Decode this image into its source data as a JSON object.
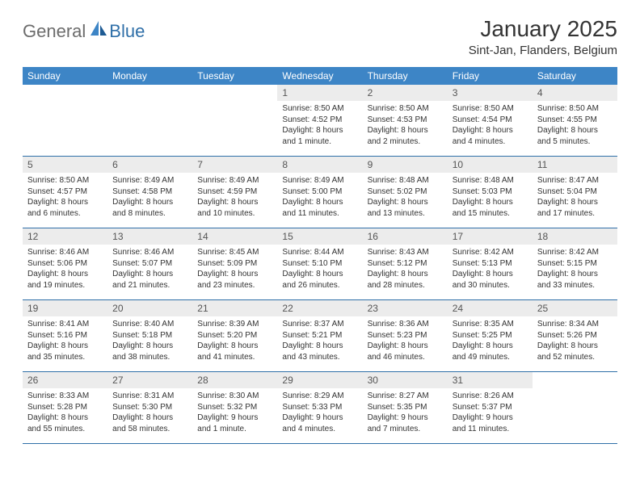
{
  "brand": {
    "part1": "General",
    "part2": "Blue"
  },
  "title": "January 2025",
  "location": "Sint-Jan, Flanders, Belgium",
  "colors": {
    "header_bg": "#3d85c6",
    "header_text": "#ffffff",
    "daynum_bg": "#ececec",
    "row_border": "#2f6fa8",
    "logo_gray": "#6c6c6c",
    "logo_blue": "#2f6fa8"
  },
  "day_headers": [
    "Sunday",
    "Monday",
    "Tuesday",
    "Wednesday",
    "Thursday",
    "Friday",
    "Saturday"
  ],
  "weeks": [
    [
      null,
      null,
      null,
      {
        "n": "1",
        "sr": "Sunrise: 8:50 AM",
        "ss": "Sunset: 4:52 PM",
        "dl": "Daylight: 8 hours and 1 minute."
      },
      {
        "n": "2",
        "sr": "Sunrise: 8:50 AM",
        "ss": "Sunset: 4:53 PM",
        "dl": "Daylight: 8 hours and 2 minutes."
      },
      {
        "n": "3",
        "sr": "Sunrise: 8:50 AM",
        "ss": "Sunset: 4:54 PM",
        "dl": "Daylight: 8 hours and 4 minutes."
      },
      {
        "n": "4",
        "sr": "Sunrise: 8:50 AM",
        "ss": "Sunset: 4:55 PM",
        "dl": "Daylight: 8 hours and 5 minutes."
      }
    ],
    [
      {
        "n": "5",
        "sr": "Sunrise: 8:50 AM",
        "ss": "Sunset: 4:57 PM",
        "dl": "Daylight: 8 hours and 6 minutes."
      },
      {
        "n": "6",
        "sr": "Sunrise: 8:49 AM",
        "ss": "Sunset: 4:58 PM",
        "dl": "Daylight: 8 hours and 8 minutes."
      },
      {
        "n": "7",
        "sr": "Sunrise: 8:49 AM",
        "ss": "Sunset: 4:59 PM",
        "dl": "Daylight: 8 hours and 10 minutes."
      },
      {
        "n": "8",
        "sr": "Sunrise: 8:49 AM",
        "ss": "Sunset: 5:00 PM",
        "dl": "Daylight: 8 hours and 11 minutes."
      },
      {
        "n": "9",
        "sr": "Sunrise: 8:48 AM",
        "ss": "Sunset: 5:02 PM",
        "dl": "Daylight: 8 hours and 13 minutes."
      },
      {
        "n": "10",
        "sr": "Sunrise: 8:48 AM",
        "ss": "Sunset: 5:03 PM",
        "dl": "Daylight: 8 hours and 15 minutes."
      },
      {
        "n": "11",
        "sr": "Sunrise: 8:47 AM",
        "ss": "Sunset: 5:04 PM",
        "dl": "Daylight: 8 hours and 17 minutes."
      }
    ],
    [
      {
        "n": "12",
        "sr": "Sunrise: 8:46 AM",
        "ss": "Sunset: 5:06 PM",
        "dl": "Daylight: 8 hours and 19 minutes."
      },
      {
        "n": "13",
        "sr": "Sunrise: 8:46 AM",
        "ss": "Sunset: 5:07 PM",
        "dl": "Daylight: 8 hours and 21 minutes."
      },
      {
        "n": "14",
        "sr": "Sunrise: 8:45 AM",
        "ss": "Sunset: 5:09 PM",
        "dl": "Daylight: 8 hours and 23 minutes."
      },
      {
        "n": "15",
        "sr": "Sunrise: 8:44 AM",
        "ss": "Sunset: 5:10 PM",
        "dl": "Daylight: 8 hours and 26 minutes."
      },
      {
        "n": "16",
        "sr": "Sunrise: 8:43 AM",
        "ss": "Sunset: 5:12 PM",
        "dl": "Daylight: 8 hours and 28 minutes."
      },
      {
        "n": "17",
        "sr": "Sunrise: 8:42 AM",
        "ss": "Sunset: 5:13 PM",
        "dl": "Daylight: 8 hours and 30 minutes."
      },
      {
        "n": "18",
        "sr": "Sunrise: 8:42 AM",
        "ss": "Sunset: 5:15 PM",
        "dl": "Daylight: 8 hours and 33 minutes."
      }
    ],
    [
      {
        "n": "19",
        "sr": "Sunrise: 8:41 AM",
        "ss": "Sunset: 5:16 PM",
        "dl": "Daylight: 8 hours and 35 minutes."
      },
      {
        "n": "20",
        "sr": "Sunrise: 8:40 AM",
        "ss": "Sunset: 5:18 PM",
        "dl": "Daylight: 8 hours and 38 minutes."
      },
      {
        "n": "21",
        "sr": "Sunrise: 8:39 AM",
        "ss": "Sunset: 5:20 PM",
        "dl": "Daylight: 8 hours and 41 minutes."
      },
      {
        "n": "22",
        "sr": "Sunrise: 8:37 AM",
        "ss": "Sunset: 5:21 PM",
        "dl": "Daylight: 8 hours and 43 minutes."
      },
      {
        "n": "23",
        "sr": "Sunrise: 8:36 AM",
        "ss": "Sunset: 5:23 PM",
        "dl": "Daylight: 8 hours and 46 minutes."
      },
      {
        "n": "24",
        "sr": "Sunrise: 8:35 AM",
        "ss": "Sunset: 5:25 PM",
        "dl": "Daylight: 8 hours and 49 minutes."
      },
      {
        "n": "25",
        "sr": "Sunrise: 8:34 AM",
        "ss": "Sunset: 5:26 PM",
        "dl": "Daylight: 8 hours and 52 minutes."
      }
    ],
    [
      {
        "n": "26",
        "sr": "Sunrise: 8:33 AM",
        "ss": "Sunset: 5:28 PM",
        "dl": "Daylight: 8 hours and 55 minutes."
      },
      {
        "n": "27",
        "sr": "Sunrise: 8:31 AM",
        "ss": "Sunset: 5:30 PM",
        "dl": "Daylight: 8 hours and 58 minutes."
      },
      {
        "n": "28",
        "sr": "Sunrise: 8:30 AM",
        "ss": "Sunset: 5:32 PM",
        "dl": "Daylight: 9 hours and 1 minute."
      },
      {
        "n": "29",
        "sr": "Sunrise: 8:29 AM",
        "ss": "Sunset: 5:33 PM",
        "dl": "Daylight: 9 hours and 4 minutes."
      },
      {
        "n": "30",
        "sr": "Sunrise: 8:27 AM",
        "ss": "Sunset: 5:35 PM",
        "dl": "Daylight: 9 hours and 7 minutes."
      },
      {
        "n": "31",
        "sr": "Sunrise: 8:26 AM",
        "ss": "Sunset: 5:37 PM",
        "dl": "Daylight: 9 hours and 11 minutes."
      },
      null
    ]
  ]
}
